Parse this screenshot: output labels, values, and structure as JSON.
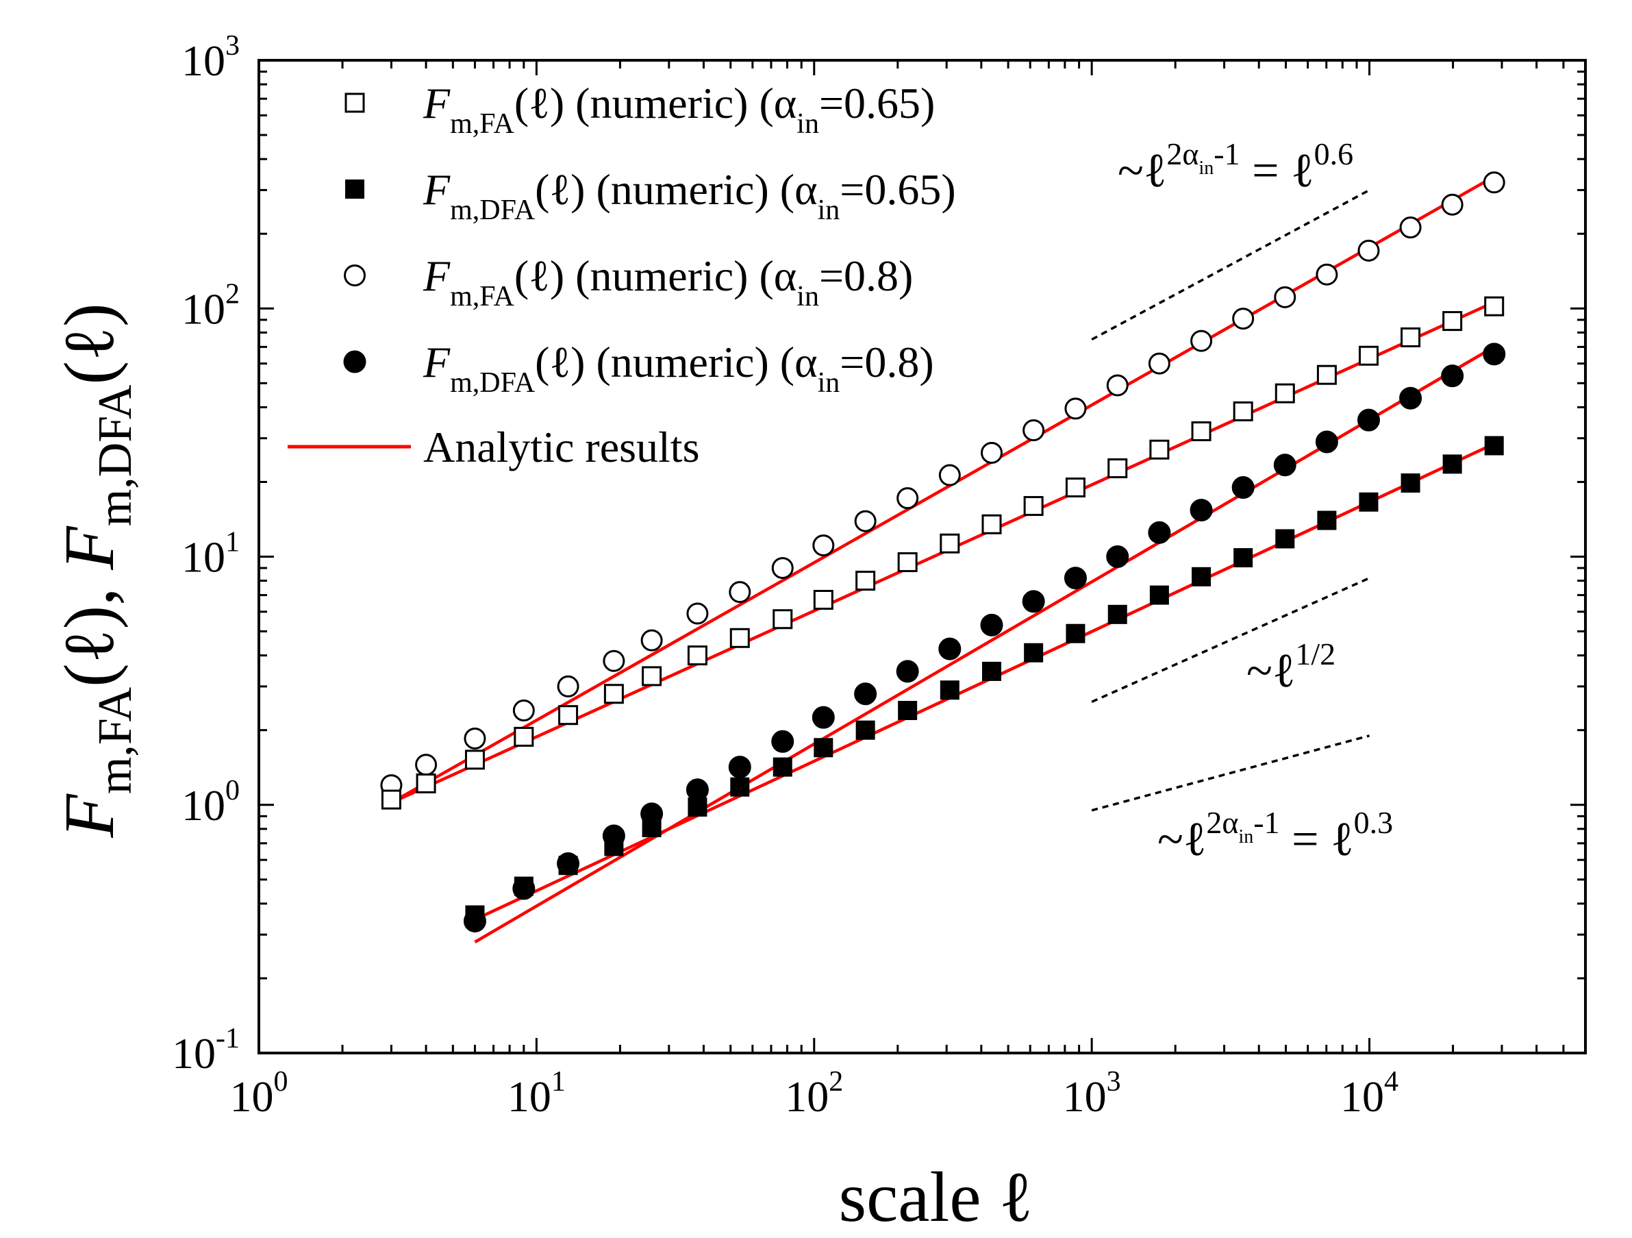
{
  "chart_data": {
    "type": "scatter",
    "scale": "log-log",
    "xlabel": "scale ℓ",
    "ylabel": "F_m,FA(ℓ), F_m,DFA(ℓ)",
    "xlim": [
      1,
      60000
    ],
    "ylim": [
      0.1,
      1000
    ],
    "x_ticks": [
      {
        "base": "10",
        "exp": "0"
      },
      {
        "base": "10",
        "exp": "1"
      },
      {
        "base": "10",
        "exp": "2"
      },
      {
        "base": "10",
        "exp": "3"
      },
      {
        "base": "10",
        "exp": "4"
      }
    ],
    "y_ticks": [
      {
        "base": "10",
        "exp": "-1"
      },
      {
        "base": "10",
        "exp": "0"
      },
      {
        "base": "10",
        "exp": "1"
      },
      {
        "base": "10",
        "exp": "2"
      },
      {
        "base": "10",
        "exp": "3"
      }
    ],
    "series": [
      {
        "name": "FA alpha 0.65",
        "marker": "open-square",
        "legend": {
          "F": "F",
          "sub": "m,FA",
          "rest": "(ℓ) (numeric) (α",
          "alphaSub": "in",
          "tail": "=0.65)"
        },
        "x": [
          3,
          4,
          6,
          9,
          13,
          19,
          26,
          38,
          54,
          77,
          108,
          153,
          217,
          308,
          436,
          617,
          874,
          1238,
          1752,
          2480,
          3509,
          4965,
          7026,
          9940,
          14063,
          19895,
          28144
        ],
        "y": [
          1.05,
          1.22,
          1.52,
          1.88,
          2.3,
          2.8,
          3.3,
          4.0,
          4.7,
          5.6,
          6.7,
          8.0,
          9.5,
          11.3,
          13.5,
          16.0,
          19.0,
          22.7,
          27.0,
          32.0,
          38.5,
          45.5,
          54.0,
          64.5,
          76.5,
          89.0,
          102.0
        ]
      },
      {
        "name": "DFA alpha 0.65",
        "marker": "filled-square",
        "legend": {
          "F": "F",
          "sub": "m,DFA",
          "rest": "(ℓ) (numeric) (α",
          "alphaSub": "in",
          "tail": "=0.65)"
        },
        "x": [
          6,
          9,
          13,
          19,
          26,
          38,
          54,
          77,
          108,
          153,
          217,
          308,
          436,
          617,
          874,
          1238,
          1752,
          2480,
          3509,
          4965,
          7026,
          9940,
          14063,
          19895,
          28144
        ],
        "y": [
          0.36,
          0.47,
          0.57,
          0.68,
          0.81,
          0.98,
          1.18,
          1.42,
          1.7,
          2.0,
          2.4,
          2.9,
          3.45,
          4.1,
          4.9,
          5.85,
          7.0,
          8.3,
          9.9,
          11.8,
          14.0,
          16.6,
          19.8,
          23.6,
          28.0
        ]
      },
      {
        "name": "FA alpha 0.8",
        "marker": "open-circle",
        "legend": {
          "F": "F",
          "sub": "m,FA",
          "rest": "(ℓ) (numeric) (α",
          "alphaSub": "in",
          "tail": "=0.8)"
        },
        "x": [
          3,
          4,
          6,
          9,
          13,
          19,
          26,
          38,
          54,
          77,
          108,
          153,
          217,
          308,
          436,
          617,
          874,
          1238,
          1752,
          2480,
          3509,
          4965,
          7026,
          9940,
          14063,
          19895,
          28144
        ],
        "y": [
          1.2,
          1.45,
          1.85,
          2.4,
          3.0,
          3.8,
          4.6,
          5.9,
          7.2,
          9.0,
          11.1,
          13.9,
          17.2,
          21.3,
          26.2,
          32.3,
          39.5,
          49.0,
          60.0,
          74.0,
          91.0,
          111.0,
          137.0,
          171.0,
          212.0,
          262.0,
          322.0
        ]
      },
      {
        "name": "DFA alpha 0.8",
        "marker": "filled-circle",
        "legend": {
          "F": "F",
          "sub": "m,DFA",
          "rest": "(ℓ) (numeric) (α",
          "alphaSub": "in",
          "tail": "=0.8)"
        },
        "x": [
          6,
          9,
          13,
          19,
          26,
          38,
          54,
          77,
          108,
          153,
          217,
          308,
          436,
          617,
          874,
          1238,
          1752,
          2480,
          3509,
          4965,
          7026,
          9940,
          14063,
          19895,
          28144
        ],
        "y": [
          0.34,
          0.46,
          0.58,
          0.75,
          0.92,
          1.15,
          1.42,
          1.8,
          2.25,
          2.8,
          3.45,
          4.25,
          5.3,
          6.6,
          8.2,
          10.0,
          12.5,
          15.4,
          19.0,
          23.4,
          29.0,
          35.5,
          43.5,
          53.5,
          65.5
        ]
      }
    ],
    "analytic": {
      "label": "Analytic results",
      "color": "#ff0000",
      "lines": [
        {
          "x": [
            3,
            28144
          ],
          "y": [
            1.02,
            106.0
          ]
        },
        {
          "x": [
            6,
            28144
          ],
          "y": [
            0.345,
            28.5
          ]
        },
        {
          "x": [
            3,
            28144
          ],
          "y": [
            1.02,
            340.0
          ]
        },
        {
          "x": [
            6,
            28144
          ],
          "y": [
            0.28,
            70.0
          ]
        }
      ]
    },
    "reference_lines": [
      {
        "x": [
          1000,
          10000
        ],
        "y": [
          75,
          300
        ],
        "label_prefix": "~ℓ",
        "label_sup": "2α",
        "label_sup_sub": "in",
        "label_sup_tail": "-1",
        "label_eq": " = ℓ",
        "label_eq_sup": "0.6"
      },
      {
        "x": [
          1000,
          10000
        ],
        "y": [
          2.6,
          8.2
        ],
        "label_prefix": "~ℓ",
        "label_sup": "1/2"
      },
      {
        "x": [
          1000,
          10000
        ],
        "y": [
          0.95,
          1.9
        ],
        "label_prefix": "~ℓ",
        "label_sup": "2α",
        "label_sup_sub": "in",
        "label_sup_tail": "-1",
        "label_eq": " = ℓ",
        "label_eq_sup": "0.3"
      }
    ]
  }
}
